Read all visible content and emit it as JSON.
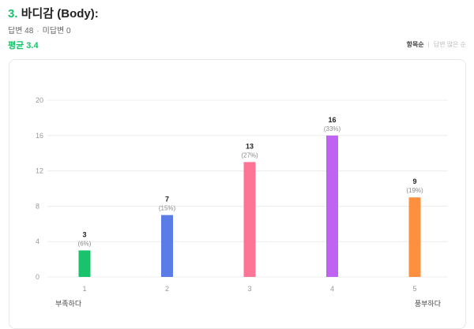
{
  "question": {
    "number": "3.",
    "title": "바디감 (Body):",
    "answered": "답변 48",
    "unanswered": "미답변 0",
    "average": "평균 3.4"
  },
  "sort": {
    "option_order": "항목순",
    "option_count": "답변 많은 순"
  },
  "colors": {
    "accent": "#19c36b"
  },
  "chart_data": {
    "type": "bar",
    "categories": [
      "1",
      "2",
      "3",
      "4",
      "5"
    ],
    "values": [
      3,
      7,
      13,
      16,
      9
    ],
    "percent_labels": [
      "(6%)",
      "(15%)",
      "(27%)",
      "(33%)",
      "(19%)"
    ],
    "bar_colors": [
      "#19c36b",
      "#5b7be6",
      "#fd7497",
      "#c062f2",
      "#fd903e"
    ],
    "ylim": [
      0,
      20
    ],
    "yticks": [
      0,
      4,
      8,
      12,
      16,
      20
    ],
    "grid": true,
    "xlabel": "",
    "ylabel": "",
    "scale_left_label": "부족하다",
    "scale_right_label": "풍부하다"
  }
}
